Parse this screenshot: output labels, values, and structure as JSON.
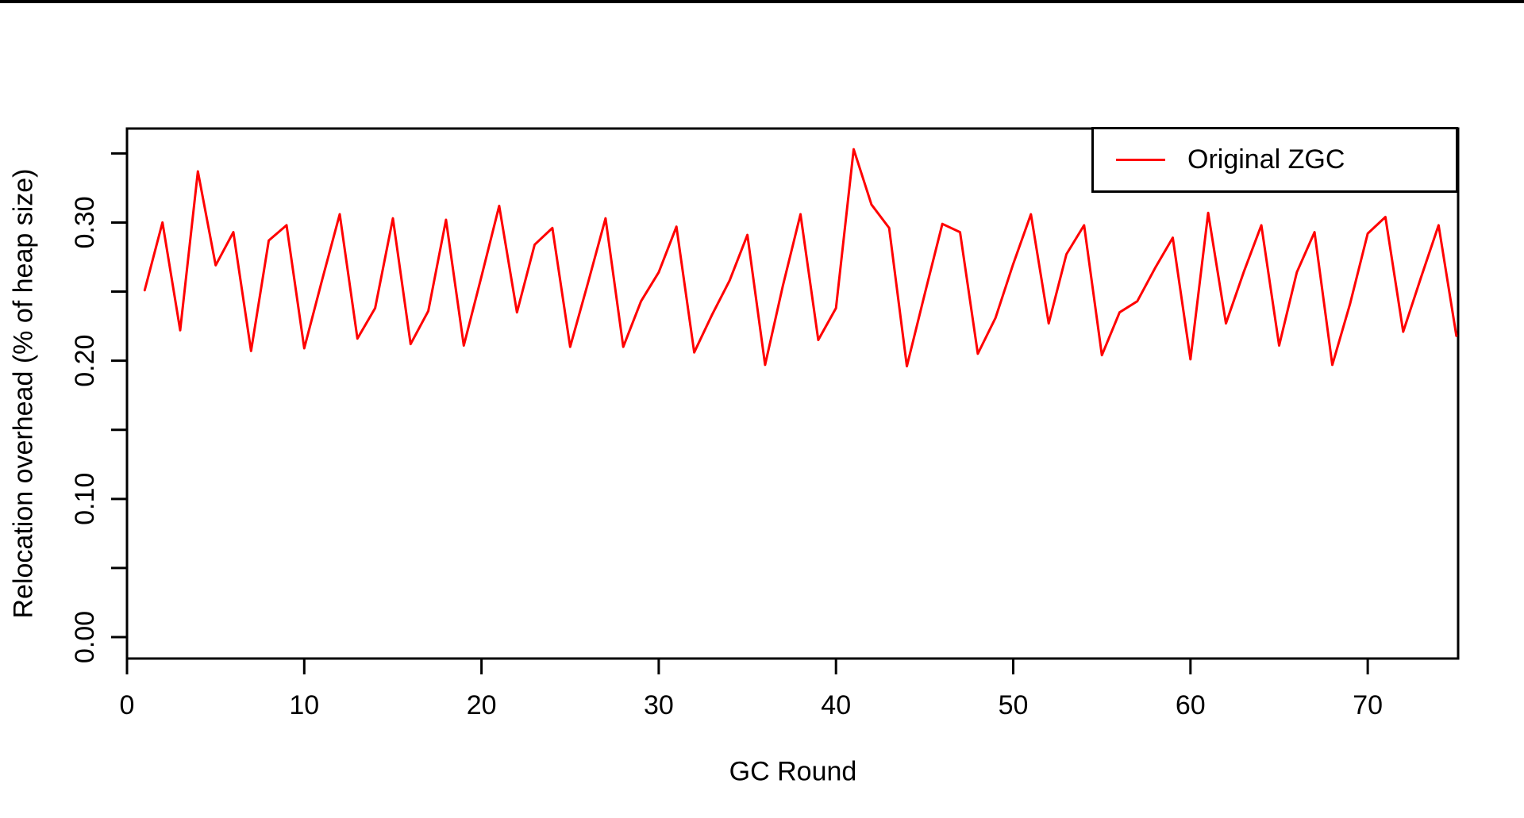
{
  "figure": {
    "background": "#ffffff",
    "top_border_color": "#000000",
    "axis_color": "#000000"
  },
  "axes": {
    "xlabel": "GC Round",
    "ylabel": "Relocation overhead (% of heap size)"
  },
  "legend": {
    "label": "Original ZGC",
    "line_color": "#FF0000"
  },
  "chart_data": {
    "type": "line",
    "title": "",
    "xlabel": "GC Round",
    "ylabel": "Relocation overhead (% of heap size)",
    "grid": false,
    "legend_position": "top-right",
    "xlim": [
      0,
      75.1
    ],
    "ylim": [
      -0.0155,
      0.368
    ],
    "x_ticks": [
      0,
      10,
      20,
      30,
      40,
      50,
      60,
      70
    ],
    "x_tick_labels": [
      "0",
      "10",
      "20",
      "30",
      "40",
      "50",
      "60",
      "70"
    ],
    "y_major_ticks": [
      0.0,
      0.1,
      0.2,
      0.3
    ],
    "y_major_tick_labels": [
      "0.00",
      "0.10",
      "0.20",
      "0.30"
    ],
    "y_minor_ticks": [
      0.05,
      0.15,
      0.25,
      0.35
    ],
    "x": [
      1,
      2,
      3,
      4,
      5,
      6,
      7,
      8,
      9,
      10,
      11,
      12,
      13,
      14,
      15,
      16,
      17,
      18,
      19,
      20,
      21,
      22,
      23,
      24,
      25,
      26,
      27,
      28,
      29,
      30,
      31,
      32,
      33,
      34,
      35,
      36,
      37,
      38,
      39,
      40,
      41,
      42,
      43,
      44,
      45,
      46,
      47,
      48,
      49,
      50,
      51,
      52,
      53,
      54,
      55,
      56,
      57,
      58,
      59,
      60,
      61,
      62,
      63,
      64,
      65,
      66,
      67,
      68,
      69,
      70,
      71,
      72,
      73,
      74,
      75
    ],
    "series": [
      {
        "name": "Original ZGC",
        "color": "#FF0000",
        "values": [
          0.251,
          0.3,
          0.222,
          0.337,
          0.269,
          0.293,
          0.207,
          0.287,
          0.298,
          0.209,
          0.258,
          0.306,
          0.216,
          0.238,
          0.303,
          0.212,
          0.236,
          0.302,
          0.211,
          0.261,
          0.312,
          0.235,
          0.284,
          0.296,
          0.21,
          0.256,
          0.303,
          0.21,
          0.243,
          0.264,
          0.297,
          0.206,
          0.233,
          0.258,
          0.291,
          0.197,
          0.254,
          0.306,
          0.215,
          0.238,
          0.353,
          0.313,
          0.296,
          0.196,
          0.248,
          0.299,
          0.293,
          0.205,
          0.231,
          0.27,
          0.306,
          0.227,
          0.277,
          0.298,
          0.204,
          0.235,
          0.243,
          0.267,
          0.289,
          0.201,
          0.307,
          0.227,
          0.264,
          0.298,
          0.211,
          0.264,
          0.293,
          0.197,
          0.241,
          0.292,
          0.304,
          0.221,
          0.26,
          0.298,
          0.218
        ]
      }
    ]
  }
}
